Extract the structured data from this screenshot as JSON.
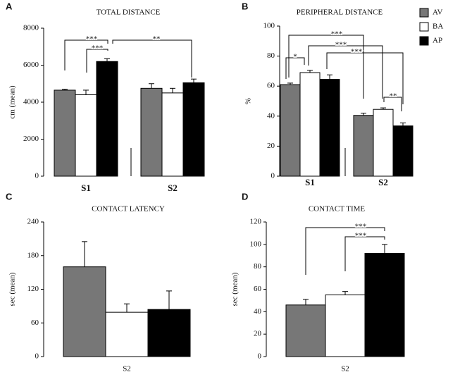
{
  "chart_data": [
    {
      "type": "bar",
      "label": "A",
      "title": "TOTAL DISTANCE",
      "ylabel": "cm (mean)",
      "categories": [
        "S1",
        "S2"
      ],
      "series": [
        {
          "color": "#777777",
          "values": [
            4650,
            4750
          ],
          "errors": [
            50,
            250
          ]
        },
        {
          "color": "#ffffff",
          "values": [
            4400,
            4500
          ],
          "errors": [
            250,
            250
          ]
        },
        {
          "color": "#000000",
          "values": [
            6200,
            5050
          ],
          "errors": [
            150,
            200
          ]
        }
      ],
      "ylim": [
        0,
        8000
      ],
      "yticks": [
        0,
        2000,
        4000,
        6000,
        8000
      ],
      "annotations": [
        "***",
        "***",
        "**"
      ]
    },
    {
      "type": "bar",
      "label": "B",
      "title": "PERIPHERAL DISTANCE",
      "ylabel": "%",
      "categories": [
        "S1",
        "S2"
      ],
      "series": [
        {
          "name": "AV",
          "color": "#777777",
          "values": [
            61,
            40.5
          ],
          "errors": [
            1,
            1.5
          ]
        },
        {
          "name": "BA",
          "color": "#ffffff",
          "values": [
            69,
            44.5
          ],
          "errors": [
            1.5,
            1
          ]
        },
        {
          "name": "AP",
          "color": "#000000",
          "values": [
            64.5,
            33.5
          ],
          "errors": [
            3,
            2
          ]
        }
      ],
      "ylim": [
        0,
        100
      ],
      "yticks": [
        0,
        20,
        40,
        60,
        80,
        100
      ],
      "legend": "upper right",
      "annotations": [
        "*",
        "***",
        "***",
        "***",
        "**"
      ]
    },
    {
      "type": "bar",
      "label": "C",
      "title": "CONTACT LATENCY",
      "ylabel": "sec (mean)",
      "categories": [
        "S2"
      ],
      "series": [
        {
          "color": "#777777",
          "values": [
            160
          ],
          "errors": [
            45
          ]
        },
        {
          "color": "#ffffff",
          "values": [
            79
          ],
          "errors": [
            15
          ]
        },
        {
          "color": "#000000",
          "values": [
            84
          ],
          "errors": [
            33
          ]
        }
      ],
      "ylim": [
        0,
        240
      ],
      "yticks": [
        0,
        60,
        120,
        180,
        240
      ]
    },
    {
      "type": "bar",
      "label": "D",
      "title": "CONTACT TIME",
      "ylabel": "sec (mean)",
      "categories": [
        "S2"
      ],
      "series": [
        {
          "color": "#777777",
          "values": [
            46
          ],
          "errors": [
            5
          ]
        },
        {
          "color": "#ffffff",
          "values": [
            55
          ],
          "errors": [
            3
          ]
        },
        {
          "color": "#000000",
          "values": [
            92
          ],
          "errors": [
            8
          ]
        }
      ],
      "ylim": [
        0,
        120
      ],
      "yticks": [
        0,
        20,
        40,
        60,
        80,
        100,
        120
      ],
      "annotations": [
        "***",
        "***"
      ]
    }
  ]
}
